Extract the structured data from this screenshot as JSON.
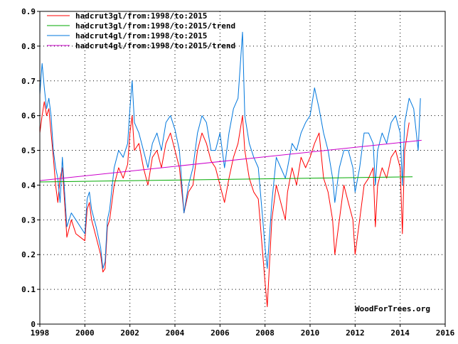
{
  "chart_data": {
    "type": "line",
    "title": "",
    "xlabel": "",
    "ylabel": "",
    "xlim": [
      1998,
      2016
    ],
    "ylim": [
      0,
      0.9
    ],
    "x_ticks": [
      "1998",
      "2000",
      "2002",
      "2004",
      "2006",
      "2008",
      "2010",
      "2012",
      "2014",
      "2016"
    ],
    "y_ticks": [
      "0",
      "0.1",
      "0.2",
      "0.3",
      "0.4",
      "0.5",
      "0.6",
      "0.7",
      "0.8",
      "0.9"
    ],
    "grid": true,
    "legend_position": "top-left",
    "credit": "WoodForTrees.org",
    "series": [
      {
        "name": "hadcrut3gl/from:1998/to:2015",
        "color": "#ff0000",
        "x": [
          1998.0,
          1998.1,
          1998.2,
          1998.3,
          1998.4,
          1998.5,
          1998.6,
          1998.7,
          1998.8,
          1998.9,
          1999.0,
          1999.2,
          1999.4,
          1999.6,
          1999.8,
          2000.0,
          2000.1,
          2000.2,
          2000.3,
          2000.5,
          2000.7,
          2000.8,
          2000.9,
          2001.0,
          2001.1,
          2001.3,
          2001.5,
          2001.7,
          2001.9,
          2002.0,
          2002.1,
          2002.2,
          2002.4,
          2002.6,
          2002.8,
          2003.0,
          2003.2,
          2003.4,
          2003.6,
          2003.8,
          2004.0,
          2004.2,
          2004.4,
          2004.6,
          2004.8,
          2005.0,
          2005.2,
          2005.4,
          2005.6,
          2005.8,
          2006.0,
          2006.2,
          2006.4,
          2006.6,
          2006.8,
          2007.0,
          2007.1,
          2007.3,
          2007.5,
          2007.7,
          2007.9,
          2008.0,
          2008.1,
          2008.3,
          2008.5,
          2008.7,
          2008.9,
          2009.0,
          2009.2,
          2009.4,
          2009.6,
          2009.8,
          2010.0,
          2010.2,
          2010.4,
          2010.6,
          2010.8,
          2011.0,
          2011.1,
          2011.3,
          2011.5,
          2011.7,
          2011.9,
          2012.0,
          2012.2,
          2012.4,
          2012.6,
          2012.8,
          2012.9,
          2013.0,
          2013.2,
          2013.4,
          2013.6,
          2013.8,
          2014.0,
          2014.1,
          2014.2,
          2014.4
        ],
        "y": [
          0.55,
          0.6,
          0.64,
          0.6,
          0.62,
          0.55,
          0.48,
          0.4,
          0.35,
          0.42,
          0.45,
          0.25,
          0.3,
          0.26,
          0.25,
          0.24,
          0.33,
          0.35,
          0.3,
          0.25,
          0.2,
          0.15,
          0.16,
          0.28,
          0.3,
          0.4,
          0.45,
          0.42,
          0.46,
          0.55,
          0.6,
          0.5,
          0.52,
          0.45,
          0.4,
          0.48,
          0.5,
          0.45,
          0.52,
          0.55,
          0.5,
          0.45,
          0.32,
          0.38,
          0.4,
          0.5,
          0.55,
          0.52,
          0.47,
          0.45,
          0.4,
          0.35,
          0.42,
          0.48,
          0.52,
          0.6,
          0.5,
          0.42,
          0.38,
          0.36,
          0.2,
          0.12,
          0.05,
          0.3,
          0.4,
          0.35,
          0.3,
          0.38,
          0.45,
          0.4,
          0.48,
          0.45,
          0.48,
          0.52,
          0.55,
          0.42,
          0.38,
          0.3,
          0.2,
          0.3,
          0.4,
          0.35,
          0.3,
          0.2,
          0.3,
          0.4,
          0.42,
          0.45,
          0.28,
          0.4,
          0.45,
          0.42,
          0.48,
          0.5,
          0.45,
          0.26,
          0.5,
          0.58
        ]
      },
      {
        "name": "hadcrut3gl/from:1998/to:2015/trend",
        "color": "#00aa00",
        "x": [
          1998.0,
          2014.55
        ],
        "y": [
          0.409,
          0.424
        ]
      },
      {
        "name": "hadcrut4gl/from:1998/to:2015",
        "color": "#0077dd",
        "x": [
          1998.0,
          1998.1,
          1998.2,
          1998.3,
          1998.4,
          1998.5,
          1998.6,
          1998.7,
          1998.8,
          1998.9,
          1999.0,
          1999.2,
          1999.4,
          1999.6,
          1999.8,
          2000.0,
          2000.1,
          2000.2,
          2000.3,
          2000.5,
          2000.7,
          2000.8,
          2000.9,
          2001.0,
          2001.1,
          2001.3,
          2001.5,
          2001.7,
          2001.9,
          2002.0,
          2002.1,
          2002.2,
          2002.4,
          2002.6,
          2002.8,
          2003.0,
          2003.2,
          2003.4,
          2003.6,
          2003.8,
          2004.0,
          2004.2,
          2004.4,
          2004.6,
          2004.8,
          2005.0,
          2005.2,
          2005.4,
          2005.6,
          2005.8,
          2006.0,
          2006.2,
          2006.4,
          2006.6,
          2006.8,
          2007.0,
          2007.1,
          2007.3,
          2007.5,
          2007.7,
          2007.9,
          2008.0,
          2008.1,
          2008.3,
          2008.5,
          2008.7,
          2008.9,
          2009.0,
          2009.2,
          2009.4,
          2009.6,
          2009.8,
          2010.0,
          2010.2,
          2010.4,
          2010.6,
          2010.8,
          2011.0,
          2011.1,
          2011.3,
          2011.5,
          2011.7,
          2011.9,
          2012.0,
          2012.2,
          2012.4,
          2012.6,
          2012.8,
          2012.9,
          2013.0,
          2013.2,
          2013.4,
          2013.6,
          2013.8,
          2014.0,
          2014.1,
          2014.2,
          2014.4,
          2014.6,
          2014.8,
          2014.9
        ],
        "y": [
          0.66,
          0.75,
          0.68,
          0.62,
          0.65,
          0.6,
          0.5,
          0.45,
          0.42,
          0.35,
          0.48,
          0.28,
          0.32,
          0.3,
          0.28,
          0.26,
          0.36,
          0.38,
          0.33,
          0.28,
          0.22,
          0.16,
          0.18,
          0.3,
          0.33,
          0.45,
          0.5,
          0.48,
          0.52,
          0.62,
          0.7,
          0.58,
          0.55,
          0.5,
          0.45,
          0.52,
          0.55,
          0.5,
          0.58,
          0.6,
          0.56,
          0.5,
          0.32,
          0.4,
          0.45,
          0.55,
          0.6,
          0.58,
          0.5,
          0.5,
          0.55,
          0.45,
          0.55,
          0.62,
          0.65,
          0.84,
          0.6,
          0.52,
          0.48,
          0.45,
          0.3,
          0.22,
          0.16,
          0.35,
          0.48,
          0.45,
          0.42,
          0.45,
          0.52,
          0.5,
          0.55,
          0.58,
          0.6,
          0.68,
          0.62,
          0.55,
          0.5,
          0.42,
          0.35,
          0.45,
          0.5,
          0.5,
          0.45,
          0.38,
          0.45,
          0.55,
          0.55,
          0.52,
          0.4,
          0.5,
          0.55,
          0.52,
          0.58,
          0.6,
          0.55,
          0.4,
          0.58,
          0.65,
          0.62,
          0.5,
          0.65
        ]
      },
      {
        "name": "hadcrut4gl/from:1998/to:2015/trend",
        "color": "#cc00cc",
        "x": [
          1998.0,
          2014.95
        ],
        "y": [
          0.413,
          0.529
        ]
      }
    ]
  }
}
